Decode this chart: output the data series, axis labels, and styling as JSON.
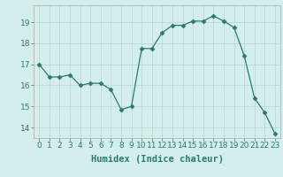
{
  "x": [
    0,
    1,
    2,
    3,
    4,
    5,
    6,
    7,
    8,
    9,
    10,
    11,
    12,
    13,
    14,
    15,
    16,
    17,
    18,
    19,
    20,
    21,
    22,
    23
  ],
  "y": [
    17.0,
    16.4,
    16.4,
    16.5,
    16.0,
    16.1,
    16.1,
    15.8,
    14.85,
    15.0,
    17.75,
    17.75,
    18.5,
    18.85,
    18.85,
    19.05,
    19.05,
    19.3,
    19.05,
    18.75,
    17.4,
    15.4,
    14.7,
    13.7
  ],
  "line_color": "#2d7a6a",
  "marker": "D",
  "marker_size": 2.5,
  "bg_color": "#d4eeed",
  "grid_color": "#c0d8d4",
  "xlabel": "Humidex (Indice chaleur)",
  "ylim": [
    13.5,
    19.8
  ],
  "xlim": [
    -0.5,
    23.5
  ],
  "yticks": [
    14,
    15,
    16,
    17,
    18,
    19
  ],
  "xticks": [
    0,
    1,
    2,
    3,
    4,
    5,
    6,
    7,
    8,
    9,
    10,
    11,
    12,
    13,
    14,
    15,
    16,
    17,
    18,
    19,
    20,
    21,
    22,
    23
  ],
  "tick_fontsize": 6.5,
  "xlabel_fontsize": 7.5
}
